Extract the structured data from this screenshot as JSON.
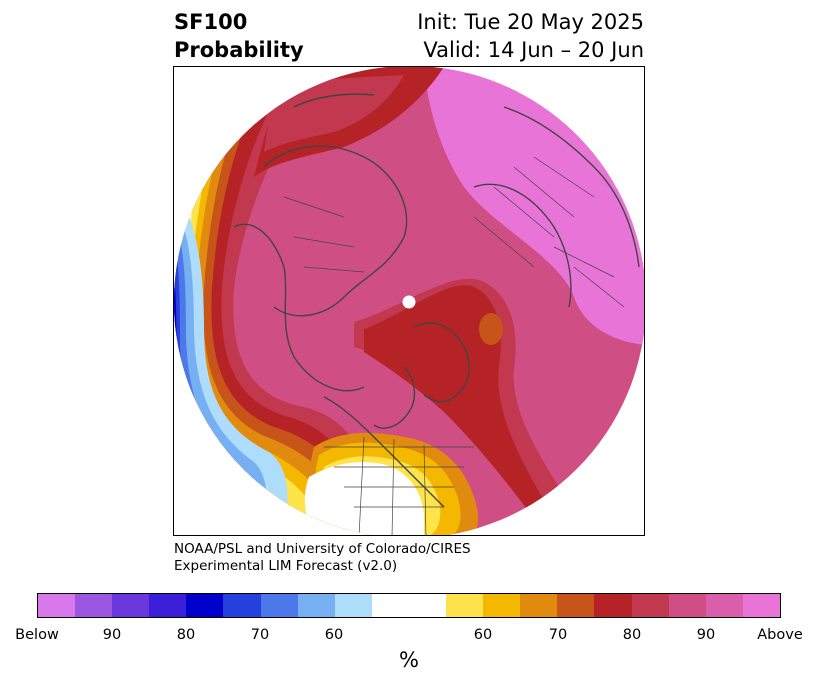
{
  "header": {
    "title_line1": "SF100",
    "title_line2": "Probability",
    "init_label": "Init: Tue 20 May 2025",
    "valid_label": "Valid: 14 Jun – 20 Jun"
  },
  "credit": {
    "line1": "NOAA/PSL and University of Colorado/CIRES",
    "line2": "Experimental LIM Forecast (v2.0)"
  },
  "legend": {
    "unit": "%",
    "tick_labels": [
      "Below",
      "90",
      "80",
      "70",
      "60",
      "60",
      "70",
      "80",
      "90",
      "Above"
    ],
    "colors": [
      "#d878ea",
      "#9a57e2",
      "#6a38dc",
      "#3a1ed8",
      "#0000cd",
      "#2640de",
      "#4d78ea",
      "#76b0f2",
      "#aedcfb",
      "#ffffff",
      "#ffe34a",
      "#f5b800",
      "#e08a10",
      "#c75418",
      "#b52326",
      "#c2384f",
      "#cf4f84",
      "#da5eaa",
      "#e874d8"
    ]
  },
  "map": {
    "projection": "north-polar-stereographic",
    "center_marker": "north-pole-dot"
  }
}
